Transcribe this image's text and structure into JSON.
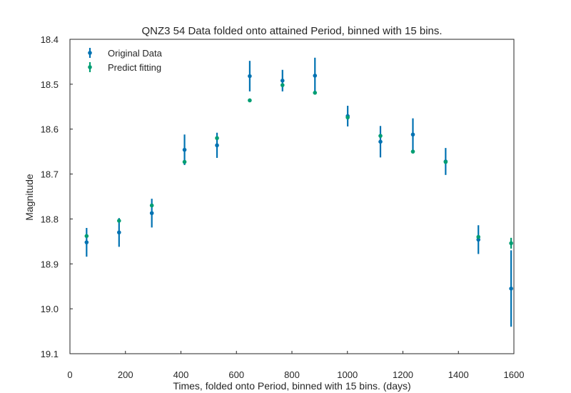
{
  "chart_data": {
    "type": "scatter",
    "title": "QNZ3 54 Data folded onto attained Period, binned with 15 bins.",
    "xlabel": "Times, folded onto Period, binned with 15 bins. (days)",
    "ylabel": "Magnitude",
    "xlim": [
      0,
      1600
    ],
    "ylim": [
      19.1,
      18.4
    ],
    "y_inverted": true,
    "x_ticks": [
      "0",
      "200",
      "400",
      "600",
      "800",
      "1000",
      "1200",
      "1400",
      "1600"
    ],
    "y_ticks": [
      "18.4",
      "18.5",
      "18.6",
      "18.7",
      "18.8",
      "18.9",
      "19.0",
      "19.1"
    ],
    "grid": false,
    "legend_position": "top-left",
    "series": [
      {
        "name": "Original Data",
        "color": "#0072b2",
        "x": [
          60,
          177,
          295,
          413,
          530,
          648,
          766,
          883,
          1001,
          1119,
          1236,
          1354,
          1472,
          1590
        ],
        "y": [
          18.852,
          18.83,
          18.787,
          18.646,
          18.636,
          18.482,
          18.492,
          18.481,
          18.571,
          18.628,
          18.612,
          18.672,
          18.846,
          18.955
        ],
        "yerr": [
          0.032,
          0.032,
          0.032,
          0.034,
          0.028,
          0.034,
          0.024,
          0.04,
          0.023,
          0.035,
          0.036,
          0.03,
          0.032,
          0.085
        ]
      },
      {
        "name": "Predict fitting",
        "color": "#009e73",
        "x": [
          60,
          177,
          295,
          413,
          530,
          648,
          766,
          883,
          1001,
          1119,
          1236,
          1354,
          1472,
          1590
        ],
        "y": [
          18.838,
          18.804,
          18.77,
          18.673,
          18.62,
          18.536,
          18.502,
          18.519,
          18.574,
          18.615,
          18.65,
          18.673,
          18.84,
          18.854
        ],
        "yerr": [
          0.004,
          0.004,
          0.004,
          0.004,
          0.004,
          0.004,
          0.004,
          0.004,
          0.004,
          0.004,
          0.004,
          0.004,
          0.004,
          0.012
        ]
      }
    ]
  }
}
